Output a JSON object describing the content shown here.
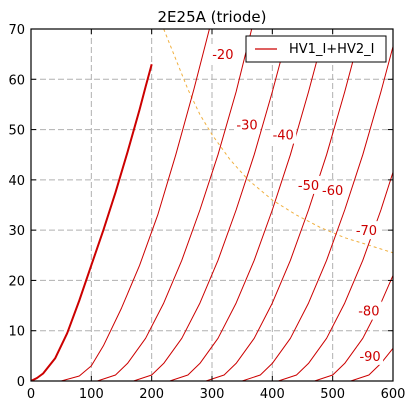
{
  "chart_data": {
    "type": "line",
    "title": "2E25A (triode)",
    "xlabel": "",
    "ylabel": "",
    "xlim": [
      0,
      600
    ],
    "ylim": [
      0,
      70
    ],
    "x_ticks": [
      0,
      100,
      200,
      300,
      400,
      500,
      600
    ],
    "y_ticks": [
      0,
      10,
      20,
      30,
      40,
      50,
      60,
      70
    ],
    "grid": true,
    "legend": {
      "placement": "top-right",
      "entries": [
        "HV1_I+HV2_I"
      ]
    },
    "colors": {
      "curve": "#cc0000",
      "dissipation": "#f0b040",
      "grid": "#b0b0b0"
    },
    "series": [
      {
        "label": "",
        "bold": true,
        "points": [
          [
            0,
            0
          ],
          [
            10,
            0.6
          ],
          [
            20,
            1.5
          ],
          [
            40,
            4.5
          ],
          [
            60,
            9.5
          ],
          [
            80,
            16
          ],
          [
            100,
            23
          ],
          [
            120,
            30
          ],
          [
            140,
            37.5
          ],
          [
            160,
            45.5
          ],
          [
            180,
            54
          ],
          [
            190,
            58.5
          ],
          [
            200,
            63
          ]
        ]
      },
      {
        "label": "-20",
        "points": [
          [
            50,
            0
          ],
          [
            80,
            1
          ],
          [
            100,
            3
          ],
          [
            120,
            7
          ],
          [
            150,
            14.5
          ],
          [
            180,
            23
          ],
          [
            210,
            33
          ],
          [
            240,
            45
          ],
          [
            270,
            58
          ],
          [
            300,
            72
          ]
        ]
      },
      {
        "label": "-30",
        "points": [
          [
            110,
            0
          ],
          [
            140,
            1.2
          ],
          [
            160,
            3.5
          ],
          [
            190,
            8.5
          ],
          [
            220,
            15.5
          ],
          [
            250,
            24
          ],
          [
            280,
            34
          ],
          [
            310,
            45
          ],
          [
            340,
            57.5
          ],
          [
            370,
            72
          ]
        ]
      },
      {
        "label": "-40",
        "points": [
          [
            170,
            0
          ],
          [
            200,
            1.2
          ],
          [
            220,
            3.5
          ],
          [
            250,
            8.5
          ],
          [
            280,
            15.5
          ],
          [
            310,
            24
          ],
          [
            340,
            34
          ],
          [
            370,
            45
          ],
          [
            400,
            57.5
          ],
          [
            420,
            66.5
          ]
        ]
      },
      {
        "label": "-50",
        "points": [
          [
            230,
            0
          ],
          [
            260,
            1.2
          ],
          [
            280,
            3.5
          ],
          [
            310,
            8.5
          ],
          [
            340,
            15.5
          ],
          [
            370,
            24
          ],
          [
            400,
            34
          ],
          [
            430,
            45
          ],
          [
            460,
            57.5
          ],
          [
            480,
            66.5
          ]
        ]
      },
      {
        "label": "-60",
        "points": [
          [
            290,
            0
          ],
          [
            320,
            1.2
          ],
          [
            340,
            3.5
          ],
          [
            370,
            8.5
          ],
          [
            400,
            15.5
          ],
          [
            430,
            24
          ],
          [
            460,
            34
          ],
          [
            490,
            45
          ],
          [
            520,
            57.5
          ],
          [
            540,
            66.5
          ]
        ]
      },
      {
        "label": "-70",
        "points": [
          [
            350,
            0
          ],
          [
            380,
            1.2
          ],
          [
            400,
            3.5
          ],
          [
            430,
            8.5
          ],
          [
            460,
            15.5
          ],
          [
            490,
            24
          ],
          [
            520,
            34
          ],
          [
            550,
            45
          ],
          [
            580,
            57.5
          ],
          [
            600,
            66.5
          ]
        ]
      },
      {
        "label": "-80",
        "points": [
          [
            410,
            0
          ],
          [
            440,
            1.2
          ],
          [
            460,
            3.5
          ],
          [
            490,
            8.5
          ],
          [
            520,
            15.5
          ],
          [
            550,
            24
          ],
          [
            580,
            34
          ],
          [
            600,
            41.5
          ]
        ]
      },
      {
        "label": "-90",
        "points": [
          [
            470,
            0
          ],
          [
            500,
            1.2
          ],
          [
            520,
            3.5
          ],
          [
            550,
            8.5
          ],
          [
            580,
            15.5
          ],
          [
            600,
            21
          ]
        ]
      },
      {
        "label": "",
        "points": [
          [
            530,
            0
          ],
          [
            560,
            1.2
          ],
          [
            580,
            3.5
          ],
          [
            600,
            6.5
          ]
        ]
      }
    ],
    "curve_labels": [
      {
        "text": "-20",
        "x": 318,
        "y": 65
      },
      {
        "text": "-30",
        "x": 358,
        "y": 51
      },
      {
        "text": "-40",
        "x": 418,
        "y": 49
      },
      {
        "text": "-50",
        "x": 460,
        "y": 39
      },
      {
        "text": "-60",
        "x": 500,
        "y": 38
      },
      {
        "text": "-70",
        "x": 556,
        "y": 30
      },
      {
        "text": "-80",
        "x": 560,
        "y": 14
      },
      {
        "text": "-90",
        "x": 562,
        "y": 5
      }
    ],
    "dissipation_curve": [
      [
        220,
        70
      ],
      [
        240,
        64
      ],
      [
        260,
        58
      ],
      [
        280,
        53
      ],
      [
        300,
        49
      ],
      [
        330,
        44
      ],
      [
        360,
        40
      ],
      [
        400,
        36
      ],
      [
        440,
        33
      ],
      [
        480,
        30.5
      ],
      [
        520,
        28.5
      ],
      [
        560,
        27
      ],
      [
        600,
        25.5
      ]
    ]
  }
}
